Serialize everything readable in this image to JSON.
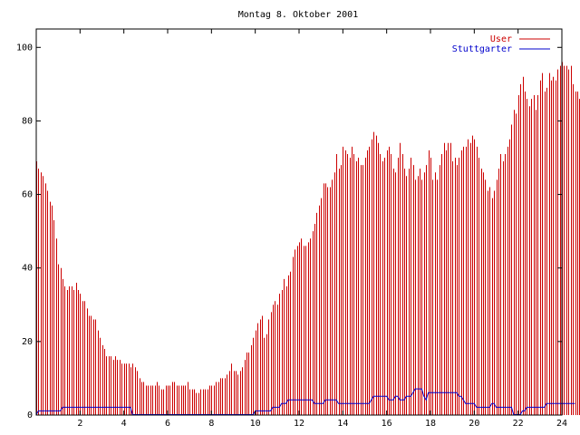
{
  "chart_data": {
    "type": "bar",
    "title": "Montag 8. Oktober 2001",
    "xlabel": "",
    "ylabel": "",
    "xlim": [
      0,
      24
    ],
    "ylim": [
      0,
      105
    ],
    "x_ticks": [
      2,
      4,
      6,
      8,
      10,
      12,
      14,
      16,
      18,
      20,
      22,
      24
    ],
    "y_ticks": [
      0,
      20,
      40,
      60,
      80,
      100
    ],
    "grid": false,
    "legend_position": "top-right",
    "sample_interval_hours": 0.1,
    "series": [
      {
        "name": "User",
        "type": "impulses",
        "color": "#cc0000",
        "values": [
          69,
          67,
          66,
          65,
          63,
          61,
          58,
          57,
          53,
          48,
          41,
          40,
          37,
          35,
          34,
          35,
          35,
          34,
          36,
          34,
          33,
          31,
          31,
          29,
          27,
          27,
          26,
          26,
          23,
          21,
          19,
          18,
          16,
          16,
          16,
          15,
          16,
          15,
          15,
          14,
          14,
          14,
          14,
          13,
          14,
          13,
          12,
          10,
          9,
          9,
          8,
          8,
          8,
          8,
          8,
          9,
          8,
          7,
          7,
          8,
          8,
          8,
          9,
          9,
          8,
          8,
          8,
          8,
          8,
          9,
          7,
          7,
          7,
          6,
          6,
          7,
          7,
          7,
          7,
          8,
          8,
          8,
          9,
          9,
          10,
          10,
          10,
          11,
          12,
          14,
          12,
          12,
          11,
          12,
          13,
          15,
          17,
          17,
          19,
          21,
          23,
          25,
          26,
          27,
          21,
          22,
          26,
          28,
          30,
          31,
          30,
          33,
          34,
          37,
          35,
          38,
          39,
          43,
          45,
          46,
          47,
          48,
          46,
          46,
          47,
          48,
          50,
          52,
          55,
          57,
          59,
          63,
          63,
          62,
          62,
          64,
          66,
          71,
          67,
          68,
          73,
          72,
          71,
          70,
          73,
          71,
          69,
          70,
          68,
          68,
          70,
          72,
          73,
          75,
          77,
          76,
          74,
          71,
          69,
          70,
          72,
          73,
          71,
          67,
          66,
          70,
          74,
          71,
          67,
          65,
          67,
          70,
          68,
          64,
          65,
          67,
          64,
          66,
          68,
          72,
          70,
          64,
          66,
          64,
          68,
          71,
          74,
          72,
          74,
          74,
          69,
          70,
          68,
          70,
          72,
          73,
          73,
          75,
          74,
          76,
          75,
          73,
          70,
          67,
          66,
          64,
          61,
          62,
          59,
          61,
          64,
          67,
          71,
          69,
          71,
          73,
          75,
          79,
          83,
          82,
          87,
          90,
          92,
          88,
          86,
          84,
          86,
          87,
          83,
          87,
          91,
          93,
          88,
          89,
          93,
          91,
          92,
          91,
          94,
          95,
          96,
          95,
          95,
          94,
          95,
          90,
          88,
          88,
          86,
          84,
          82
        ]
      },
      {
        "name": "Stuttgarter",
        "type": "line",
        "color": "#0000cc",
        "values": [
          0,
          1,
          1,
          1,
          1,
          1,
          1,
          1,
          1,
          1,
          1,
          1,
          2,
          2,
          2,
          2,
          2,
          2,
          2,
          2,
          2,
          2,
          2,
          2,
          2,
          2,
          2,
          2,
          2,
          2,
          2,
          2,
          2,
          2,
          2,
          2,
          2,
          2,
          2,
          2,
          2,
          2,
          2,
          2,
          0,
          0,
          0,
          0,
          0,
          0,
          0,
          0,
          0,
          0,
          0,
          0,
          0,
          0,
          0,
          0,
          0,
          0,
          0,
          0,
          0,
          0,
          0,
          0,
          0,
          0,
          0,
          0,
          0,
          0,
          0,
          0,
          0,
          0,
          0,
          0,
          0,
          0,
          0,
          0,
          0,
          0,
          0,
          0,
          0,
          0,
          0,
          0,
          0,
          0,
          0,
          0,
          0,
          0,
          0,
          0,
          1,
          1,
          1,
          1,
          1,
          1,
          1,
          1,
          2,
          2,
          2,
          2,
          3,
          3,
          3,
          4,
          4,
          4,
          4,
          4,
          4,
          4,
          4,
          4,
          4,
          4,
          4,
          3,
          3,
          3,
          3,
          3,
          4,
          4,
          4,
          4,
          4,
          4,
          3,
          3,
          3,
          3,
          3,
          3,
          3,
          3,
          3,
          3,
          3,
          3,
          3,
          3,
          3,
          4,
          5,
          5,
          5,
          5,
          5,
          5,
          5,
          4,
          4,
          4,
          5,
          5,
          4,
          4,
          4,
          5,
          5,
          5,
          6,
          7,
          7,
          7,
          7,
          5,
          4,
          6,
          6,
          6,
          6,
          6,
          6,
          6,
          6,
          6,
          6,
          6,
          6,
          6,
          6,
          5,
          5,
          4,
          3,
          3,
          3,
          3,
          3,
          2,
          2,
          2,
          2,
          2,
          2,
          2,
          3,
          3,
          2,
          2,
          2,
          2,
          2,
          2,
          2,
          2,
          0,
          0,
          0,
          0,
          1,
          1,
          2,
          2,
          2,
          2,
          2,
          2,
          2,
          2,
          2,
          3,
          3,
          3,
          3,
          3,
          3,
          3,
          3,
          3,
          3,
          3,
          3,
          3,
          3
        ]
      }
    ]
  }
}
